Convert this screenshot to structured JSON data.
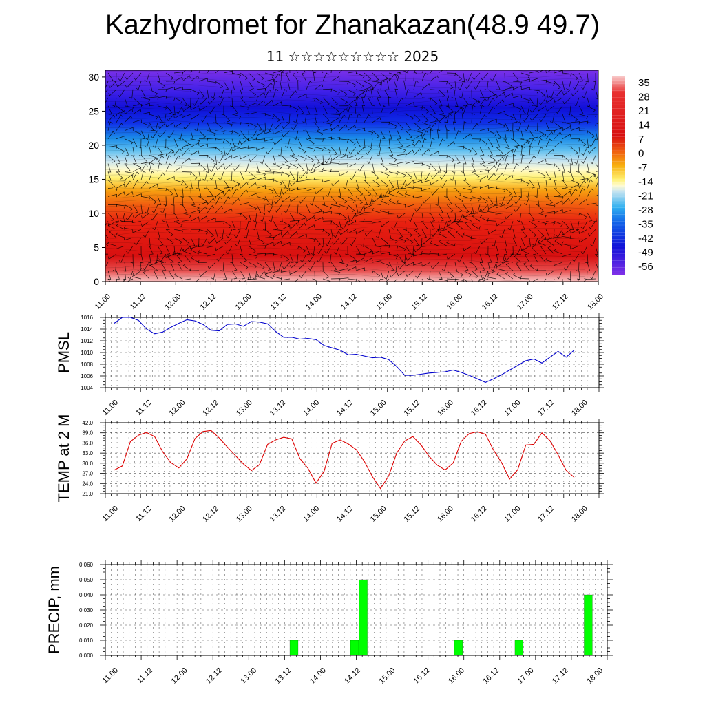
{
  "title": "Kazhydromet for Zhanakazan(48.9 49.7)",
  "subtitle": "11 ☆☆☆☆☆☆☆☆☆ 2025",
  "colors": {
    "pmsl_line": "#0000cc",
    "temp_line": "#dd0000",
    "precip_bar": "#00ff00",
    "wind_barb": "#000000"
  },
  "chart_data": [
    {
      "type": "heatmap",
      "name": "temperature-cross-section",
      "x_ticks": [
        "11.00",
        "11.12",
        "12.00",
        "12.12",
        "13.00",
        "13.12",
        "14.00",
        "14.12",
        "15.00",
        "15.12",
        "16.00",
        "16.12",
        "17.00",
        "17.12",
        "18.00"
      ],
      "y_ticks": [
        0,
        5,
        10,
        15,
        20,
        25,
        30
      ],
      "ylim": [
        0,
        31
      ],
      "colorbar_labels": [
        "35",
        "28",
        "21",
        "14",
        "7",
        "0",
        "-7",
        "-14",
        "-21",
        "-28",
        "-35",
        "-42",
        "-49",
        "-56"
      ],
      "colorbar_range": [
        -60,
        38
      ],
      "overlay": "wind barbs"
    },
    {
      "type": "line",
      "ylabel": "PMSL",
      "x_ticks": [
        "11.00",
        "11.12",
        "12.00",
        "12.12",
        "13.00",
        "13.12",
        "14.00",
        "14.12",
        "15.00",
        "15.12",
        "16.00",
        "16.12",
        "17.00",
        "17.12",
        "18.00"
      ],
      "y_ticks": [
        "1004",
        "1006",
        "1008",
        "1010",
        "1012",
        "1014",
        "1016"
      ],
      "ylim": [
        1004,
        1016
      ],
      "values": [
        1015.0,
        1016.0,
        1016.0,
        1015.5,
        1014.0,
        1013.2,
        1013.5,
        1014.3,
        1015.0,
        1015.6,
        1015.4,
        1014.8,
        1013.8,
        1013.7,
        1014.8,
        1014.9,
        1014.5,
        1015.3,
        1015.2,
        1014.9,
        1013.6,
        1012.6,
        1012.6,
        1012.3,
        1012.4,
        1012.2,
        1011.2,
        1010.8,
        1010.4,
        1009.6,
        1009.7,
        1009.4,
        1009.1,
        1009.2,
        1008.8,
        1007.6,
        1006.1,
        1006.1,
        1006.3,
        1006.5,
        1006.6,
        1006.7,
        1007.0,
        1006.6,
        1006.1,
        1005.5,
        1004.9,
        1005.5,
        1006.2,
        1007.0,
        1007.8,
        1008.6,
        1008.9,
        1008.2,
        1009.2,
        1010.2,
        1009.2,
        1010.4
      ]
    },
    {
      "type": "line",
      "ylabel": "TEMP at 2 M",
      "x_ticks": [
        "11.00",
        "11.12",
        "12.00",
        "12.12",
        "13.00",
        "13.12",
        "14.00",
        "14.12",
        "15.00",
        "15.12",
        "16.00",
        "16.12",
        "17.00",
        "17.12",
        "18.00"
      ],
      "y_ticks": [
        "21.0",
        "24.0",
        "27.0",
        "30.0",
        "33.0",
        "36.0",
        "39.0",
        "42.0"
      ],
      "ylim": [
        21,
        42
      ],
      "values": [
        28.0,
        29.2,
        36.4,
        38.3,
        39.1,
        37.9,
        33.4,
        30.2,
        28.6,
        31.3,
        37.3,
        39.4,
        39.7,
        37.5,
        34.8,
        32.3,
        29.8,
        27.8,
        29.6,
        35.6,
        36.9,
        37.7,
        37.2,
        31.4,
        28.5,
        24.1,
        27.6,
        35.9,
        36.9,
        35.7,
        34.0,
        30.5,
        26.0,
        22.5,
        26.2,
        33.0,
        36.6,
        37.9,
        35.5,
        32.1,
        29.5,
        28.0,
        30.1,
        36.5,
        38.8,
        39.3,
        38.6,
        33.9,
        30.2,
        25.3,
        28.1,
        35.4,
        35.6,
        39.0,
        36.7,
        32.5,
        27.9,
        25.8
      ]
    },
    {
      "type": "bar",
      "ylabel": "PRECIP, mm",
      "x_ticks": [
        "11.00",
        "11.12",
        "12.00",
        "12.12",
        "13.00",
        "13.12",
        "14.00",
        "14.12",
        "15.00",
        "15.12",
        "16.00",
        "16.12",
        "17.00",
        "17.12",
        "18.00"
      ],
      "y_ticks": [
        "0.000",
        "0.010",
        "0.020",
        "0.030",
        "0.040",
        "0.050",
        "0.060"
      ],
      "ylim": [
        0,
        0.06
      ],
      "steps": 56,
      "bars": [
        {
          "step": 21,
          "value": 0.01
        },
        {
          "step": 28,
          "value": 0.01
        },
        {
          "step": 29,
          "value": 0.05
        },
        {
          "step": 40,
          "value": 0.01
        },
        {
          "step": 47,
          "value": 0.01
        },
        {
          "step": 55,
          "value": 0.04
        }
      ]
    }
  ]
}
